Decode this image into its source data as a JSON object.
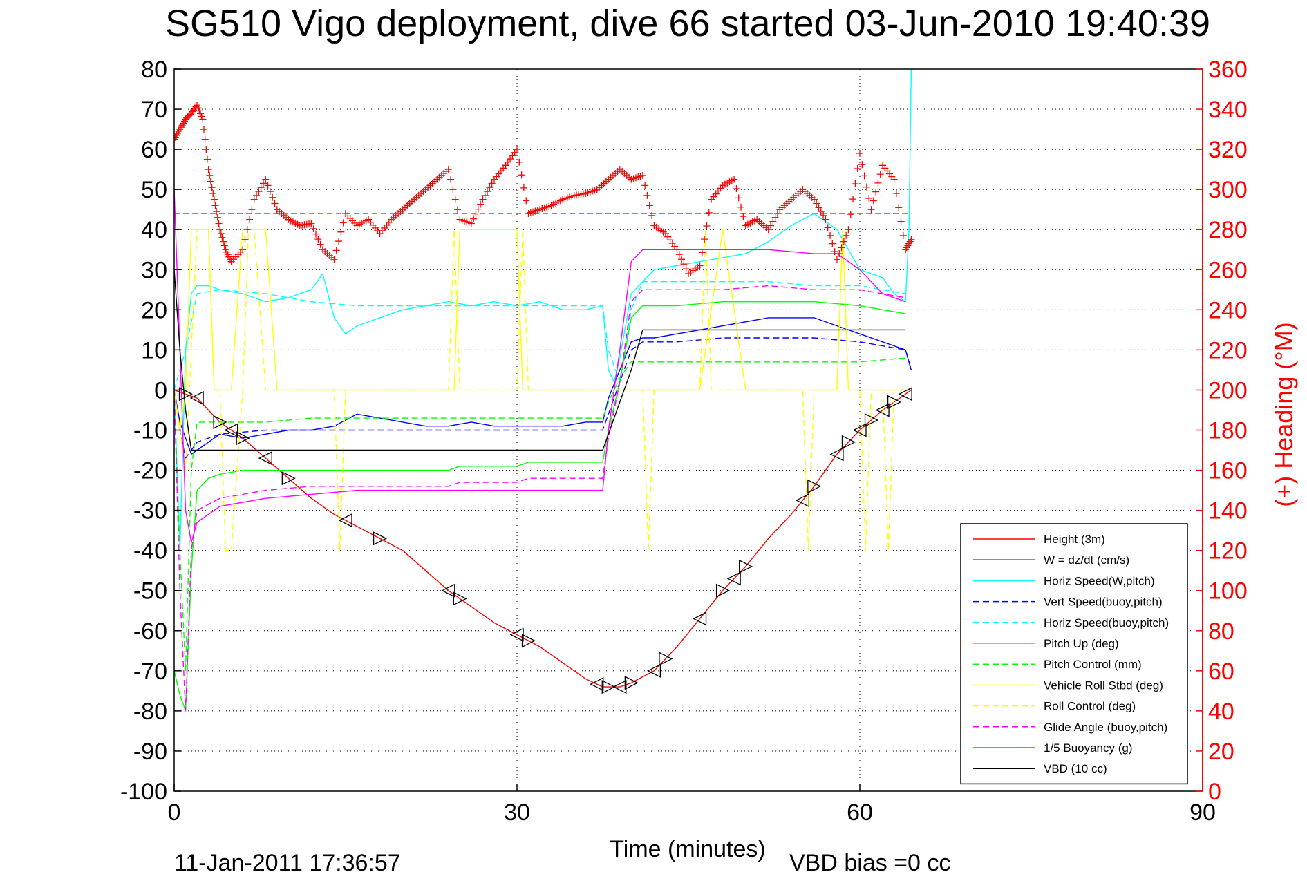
{
  "chart_data": {
    "type": "line",
    "title": "SG510 Vigo deployment, dive 66 started 03-Jun-2010 19:40:39",
    "xlabel": "Time (minutes)",
    "ylabel_right": "(+) Heading (°M)",
    "xlim": [
      0,
      90
    ],
    "ylim": [
      -100,
      80
    ],
    "ylim_right": [
      0,
      360
    ],
    "x_ticks": [
      "0",
      "30",
      "60",
      "90"
    ],
    "y_ticks": [
      "80",
      "70",
      "60",
      "50",
      "40",
      "30",
      "20",
      "10",
      "0",
      "-10",
      "-20",
      "-30",
      "-40",
      "-50",
      "-60",
      "-70",
      "-80",
      "-90",
      "-100"
    ],
    "y_ticks_right": [
      "360",
      "340",
      "320",
      "300",
      "280",
      "260",
      "240",
      "220",
      "200",
      "180",
      "160",
      "140",
      "120",
      "100",
      "80",
      "60",
      "40",
      "20",
      "0"
    ],
    "grid": true,
    "legend_position": "bottom-right",
    "footer_date": "11-Jan-2011 17:36:57",
    "footer_note": "VBD bias =0 cc",
    "heading_mean_line": 288,
    "series": [
      {
        "name": "Height (3m)",
        "color": "#ff0000",
        "style": "solid",
        "x": [
          0,
          1,
          2,
          4,
          6,
          8,
          10,
          12,
          14,
          16,
          18,
          20,
          22,
          24,
          26,
          28,
          30,
          32,
          34,
          36,
          37.5,
          39,
          40,
          42,
          44,
          46,
          48,
          50,
          52,
          54,
          56,
          58,
          60,
          62,
          63,
          64,
          64.5
        ],
        "y": [
          0,
          -1,
          -2,
          -8,
          -12,
          -17,
          -22,
          -27,
          -31,
          -34,
          -37,
          -40,
          -45,
          -50,
          -54,
          -58,
          -61,
          -64,
          -68,
          -72,
          -74,
          -74,
          -73,
          -70,
          -64,
          -57,
          -50,
          -44,
          -37,
          -31,
          -24,
          -16,
          -10,
          -5,
          -3,
          -1,
          0
        ]
      },
      {
        "name": "W = dz/dt (cm/s)",
        "color": "#0000ff",
        "style": "solid",
        "x": [
          0,
          0.5,
          1,
          1.5,
          2,
          3,
          4,
          6,
          8,
          10,
          12,
          14,
          16,
          18,
          20,
          22,
          24,
          26,
          28,
          30,
          32,
          34,
          36,
          37.5,
          38,
          39,
          40,
          41,
          42,
          44,
          46,
          48,
          50,
          52,
          54,
          56,
          58,
          60,
          62,
          64,
          64.5
        ],
        "y": [
          0,
          -8,
          -12,
          -16,
          -15,
          -13,
          -11,
          -12,
          -11,
          -10,
          -10,
          -9,
          -6,
          -7,
          -8,
          -9,
          -9,
          -8,
          -9,
          -9,
          -9,
          -9,
          -8,
          -8,
          -2,
          5,
          12,
          13,
          13,
          14,
          15,
          16,
          17,
          18,
          18,
          18,
          16,
          14,
          12,
          10,
          5
        ]
      },
      {
        "name": "Horiz Speed(W,pitch)",
        "color": "#00ffff",
        "style": "solid",
        "x": [
          0,
          0.5,
          1,
          1.5,
          2,
          3,
          4,
          6,
          8,
          10,
          12,
          13,
          14,
          15,
          16,
          18,
          20,
          22,
          24,
          26,
          28,
          30,
          32,
          34,
          36,
          37.5,
          38,
          38.5,
          39,
          40,
          42,
          44,
          46,
          48,
          50,
          52,
          54,
          56,
          58,
          60,
          62,
          63,
          64,
          64.3,
          64.5
        ],
        "y": [
          0,
          -40,
          10,
          24,
          26,
          26,
          25,
          24,
          22,
          23,
          25,
          29,
          18,
          14,
          16,
          18,
          20,
          21,
          22,
          21,
          22,
          21,
          22,
          20,
          20,
          21,
          5,
          2,
          8,
          24,
          30,
          31,
          32,
          33,
          34,
          37,
          41,
          44,
          40,
          30,
          28,
          24,
          22,
          40,
          80
        ]
      },
      {
        "name": "Vert Speed(buoy,pitch)",
        "color": "#0000ff",
        "style": "dashed",
        "x": [
          0,
          0.5,
          1,
          1.5,
          2,
          4,
          8,
          12,
          16,
          20,
          24,
          28,
          32,
          36,
          37.5,
          38,
          39,
          40,
          41,
          44,
          48,
          52,
          56,
          60,
          62,
          64,
          64.5
        ],
        "y": [
          0,
          -10,
          -17,
          -15,
          -13,
          -11,
          -10,
          -10,
          -10,
          -10,
          -10,
          -10,
          -10,
          -10,
          -10,
          -6,
          2,
          10,
          12,
          12,
          13,
          13,
          13,
          12,
          11,
          10,
          5
        ]
      },
      {
        "name": "Horiz Speed(buoy,pitch)",
        "color": "#00ffff",
        "style": "dashed",
        "x": [
          0,
          1,
          2,
          4,
          8,
          12,
          16,
          20,
          24,
          28,
          32,
          36,
          37.5,
          38,
          39,
          40,
          41,
          44,
          48,
          52,
          56,
          60,
          62,
          64
        ],
        "y": [
          0,
          10,
          24,
          25,
          24,
          22,
          21,
          21,
          21,
          21,
          21,
          21,
          21,
          10,
          2,
          20,
          27,
          27,
          27,
          27,
          26,
          26,
          25,
          24
        ]
      },
      {
        "name": "Pitch Up (deg)",
        "color": "#00ff00",
        "style": "solid",
        "x": [
          0,
          0.5,
          1,
          1.5,
          2,
          3,
          4,
          6,
          8,
          12,
          16,
          20,
          24,
          25,
          28,
          30,
          31,
          34,
          37.5,
          38,
          39,
          40,
          41,
          44,
          48,
          52,
          56,
          60,
          62,
          64
        ],
        "y": [
          -70,
          -76,
          -80,
          -45,
          -25,
          -22,
          -21,
          -20,
          -20,
          -20,
          -20,
          -20,
          -20,
          -19,
          -19,
          -19,
          -18,
          -18,
          -18,
          -10,
          2,
          18,
          21,
          21,
          22,
          22,
          22,
          21,
          20,
          19
        ]
      },
      {
        "name": "Pitch Control (mm)",
        "color": "#00ff00",
        "style": "dashed",
        "x": [
          0,
          0.5,
          1,
          1.5,
          2,
          4,
          8,
          12,
          16,
          20,
          24,
          28,
          32,
          36,
          37.5,
          38,
          39,
          40,
          44,
          48,
          52,
          56,
          60,
          64
        ],
        "y": [
          0,
          -40,
          -70,
          -20,
          -8,
          -8,
          -8,
          -7,
          -7,
          -7,
          -7,
          -7,
          -7,
          -7,
          -7,
          -3,
          3,
          7,
          7,
          7,
          7,
          7,
          7,
          8
        ]
      },
      {
        "name": "Vehicle Roll Stbd (deg)",
        "color": "#ffff00",
        "style": "solid",
        "x": [
          0,
          0.5,
          1,
          1.5,
          2,
          3,
          3.5,
          4,
          5,
          6,
          8,
          9,
          10,
          12,
          14,
          16,
          18,
          20,
          22,
          24,
          24.5,
          25,
          26,
          28,
          30,
          30.5,
          31,
          33,
          35,
          37,
          38,
          40,
          41,
          42,
          44,
          46,
          48,
          50,
          52,
          54,
          56,
          58,
          58.5,
          59,
          60,
          62,
          64
        ],
        "y": [
          0,
          -10,
          0,
          40,
          40,
          40,
          0,
          0,
          0,
          40,
          40,
          0,
          0,
          0,
          0,
          0,
          0,
          0,
          0,
          0,
          0,
          40,
          40,
          40,
          40,
          0,
          0,
          0,
          0,
          0,
          0,
          0,
          0,
          0,
          0,
          0,
          40,
          0,
          0,
          0,
          0,
          0,
          40,
          0,
          0,
          0,
          0
        ]
      },
      {
        "name": "Roll Control (deg)",
        "color": "#ffff00",
        "style": "dashed",
        "x": [
          0,
          1,
          2,
          3,
          3.5,
          4,
          4.5,
          5,
          6,
          6.5,
          7,
          8,
          8.5,
          9,
          14,
          14.5,
          15,
          24,
          24.5,
          25,
          30,
          30.5,
          31,
          41,
          41.5,
          42,
          46,
          46.5,
          47,
          55,
          55.5,
          56,
          58,
          58.5,
          59,
          60,
          60.5,
          61,
          62,
          62.5,
          63,
          64
        ],
        "y": [
          0,
          -20,
          40,
          40,
          0,
          0,
          -40,
          -40,
          0,
          40,
          40,
          0,
          0,
          0,
          0,
          -40,
          0,
          0,
          40,
          0,
          0,
          40,
          0,
          0,
          -40,
          0,
          0,
          40,
          0,
          0,
          -40,
          0,
          0,
          40,
          0,
          0,
          -40,
          0,
          0,
          -40,
          0,
          0
        ]
      },
      {
        "name": "Glide Angle (buoy,pitch)",
        "color": "#ff00ff",
        "style": "dashed",
        "x": [
          0,
          0.5,
          1,
          1.5,
          2,
          4,
          8,
          12,
          16,
          20,
          24,
          25,
          28,
          30,
          31,
          34,
          37.5,
          38,
          39,
          40,
          41,
          44,
          48,
          52,
          56,
          60,
          62,
          64
        ],
        "y": [
          0,
          -50,
          -80,
          -40,
          -30,
          -27,
          -25,
          -24,
          -24,
          -24,
          -24,
          -23,
          -23,
          -23,
          -22,
          -22,
          -22,
          -12,
          2,
          22,
          25,
          25,
          25,
          26,
          25,
          25,
          24,
          23
        ]
      },
      {
        "name": "1/5 Buoyancy (g)",
        "color": "#ff00ff",
        "style": "solid",
        "x": [
          0,
          0.5,
          1,
          1.5,
          2,
          4,
          8,
          12,
          16,
          20,
          24,
          28,
          32,
          36,
          37.5,
          38,
          39,
          40,
          41,
          44,
          48,
          52,
          56,
          58,
          60,
          62,
          64
        ],
        "y": [
          50,
          10,
          -30,
          -38,
          -33,
          -29,
          -27,
          -26,
          -25,
          -25,
          -25,
          -25,
          -25,
          -25,
          -25,
          -10,
          10,
          32,
          35,
          35,
          35,
          35,
          34,
          34,
          30,
          24,
          22
        ]
      },
      {
        "name": "VBD (10 cc)",
        "color": "#000000",
        "style": "solid",
        "x": [
          0,
          0.5,
          1,
          1.5,
          3,
          10,
          20,
          30,
          37.5,
          40,
          41,
          42,
          50,
          60,
          64
        ],
        "y": [
          30,
          10,
          -5,
          -15,
          -15,
          -15,
          -15,
          -15,
          -15,
          5,
          15,
          15,
          15,
          15,
          15
        ]
      }
    ],
    "heading_series": {
      "name": "(+) Heading (°M)",
      "color": "#ff0000",
      "marker": "+",
      "x": [
        0,
        0.5,
        1,
        1.5,
        2,
        2.5,
        3,
        3.5,
        4,
        4.5,
        5,
        6,
        7,
        8,
        9,
        10,
        11,
        12,
        13,
        14,
        15,
        16,
        17,
        18,
        19,
        20,
        21,
        22,
        23,
        24,
        25,
        26,
        27,
        28,
        29,
        30,
        31,
        32,
        33,
        34,
        35,
        36,
        37,
        38,
        39,
        40,
        41,
        42,
        43,
        44,
        45,
        46,
        47,
        48,
        49,
        50,
        51,
        52,
        53,
        54,
        55,
        56,
        57,
        58,
        59,
        60,
        61,
        62,
        63,
        64,
        64.5
      ],
      "y": [
        325,
        330,
        335,
        338,
        342,
        335,
        310,
        295,
        280,
        270,
        264,
        270,
        295,
        305,
        290,
        285,
        282,
        283,
        270,
        265,
        288,
        282,
        285,
        278,
        285,
        290,
        295,
        300,
        305,
        310,
        285,
        283,
        295,
        305,
        312,
        320,
        288,
        290,
        292,
        295,
        297,
        298,
        300,
        305,
        310,
        305,
        307,
        282,
        278,
        270,
        258,
        262,
        295,
        302,
        305,
        282,
        285,
        280,
        290,
        295,
        300,
        295,
        285,
        265,
        280,
        318,
        290,
        312,
        305,
        270,
        275
      ]
    },
    "triangle_markers_x": [
      1,
      2,
      4,
      5,
      6,
      8,
      10,
      15,
      18,
      24,
      25,
      30,
      31,
      37,
      38,
      39,
      40,
      42,
      43,
      46,
      48,
      49,
      50,
      55,
      56,
      58,
      59,
      60,
      61,
      62,
      63,
      64
    ]
  }
}
